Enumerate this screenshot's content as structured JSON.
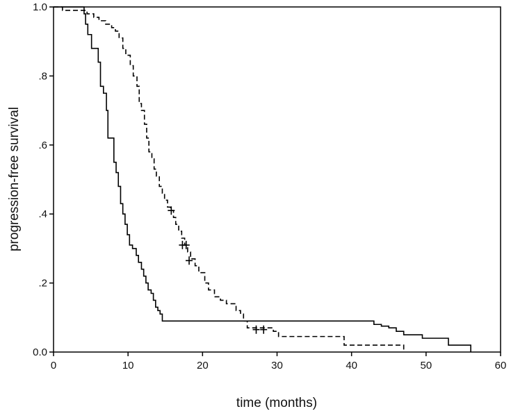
{
  "chart_data": {
    "type": "line",
    "subtype": "kaplan-meier step",
    "title": "",
    "xlabel": "time (months)",
    "ylabel": "progression-free survival",
    "xlim": [
      0,
      60
    ],
    "ylim": [
      0,
      1
    ],
    "x_ticks": [
      0,
      10,
      20,
      30,
      40,
      50,
      60
    ],
    "x_tick_labels": [
      "0",
      "10",
      "20",
      "30",
      "40",
      "50",
      "60"
    ],
    "y_ticks": [
      0,
      0.2,
      0.4,
      0.6,
      0.8,
      1.0
    ],
    "y_tick_labels": [
      "0.0",
      ".2",
      ".4",
      ".6",
      ".8",
      "1.0"
    ],
    "grid": false,
    "legend": "none",
    "series": [
      {
        "line_style": "solid",
        "color": "#000000",
        "steps": [
          [
            0,
            1.0
          ],
          [
            4.1,
            0.98
          ],
          [
            4.3,
            0.95
          ],
          [
            4.6,
            0.92
          ],
          [
            5.1,
            0.88
          ],
          [
            6.0,
            0.84
          ],
          [
            6.3,
            0.77
          ],
          [
            6.7,
            0.75
          ],
          [
            7.1,
            0.7
          ],
          [
            7.3,
            0.62
          ],
          [
            8.1,
            0.55
          ],
          [
            8.4,
            0.52
          ],
          [
            8.7,
            0.48
          ],
          [
            9.0,
            0.43
          ],
          [
            9.3,
            0.4
          ],
          [
            9.6,
            0.37
          ],
          [
            9.9,
            0.34
          ],
          [
            10.2,
            0.31
          ],
          [
            10.6,
            0.3
          ],
          [
            11.1,
            0.28
          ],
          [
            11.4,
            0.26
          ],
          [
            11.8,
            0.24
          ],
          [
            12.1,
            0.22
          ],
          [
            12.4,
            0.2
          ],
          [
            12.7,
            0.18
          ],
          [
            13.1,
            0.17
          ],
          [
            13.4,
            0.15
          ],
          [
            13.7,
            0.13
          ],
          [
            14.0,
            0.12
          ],
          [
            14.3,
            0.11
          ],
          [
            14.6,
            0.09
          ],
          [
            43.0,
            0.08
          ],
          [
            44.0,
            0.075
          ],
          [
            45.0,
            0.07
          ],
          [
            46.0,
            0.06
          ],
          [
            47.0,
            0.05
          ],
          [
            49.5,
            0.04
          ],
          [
            53.0,
            0.02
          ],
          [
            56.0,
            0.0
          ]
        ],
        "end_x": 56.0,
        "censored": []
      },
      {
        "line_style": "dashed",
        "color": "#000000",
        "steps": [
          [
            0,
            1.0
          ],
          [
            1.2,
            0.99
          ],
          [
            4.5,
            0.98
          ],
          [
            5.4,
            0.97
          ],
          [
            6.1,
            0.96
          ],
          [
            7.0,
            0.95
          ],
          [
            7.8,
            0.94
          ],
          [
            8.3,
            0.93
          ],
          [
            8.8,
            0.91
          ],
          [
            9.3,
            0.88
          ],
          [
            9.7,
            0.86
          ],
          [
            10.3,
            0.83
          ],
          [
            10.7,
            0.8
          ],
          [
            11.2,
            0.77
          ],
          [
            11.5,
            0.72
          ],
          [
            11.8,
            0.7
          ],
          [
            12.2,
            0.66
          ],
          [
            12.5,
            0.62
          ],
          [
            12.8,
            0.58
          ],
          [
            13.2,
            0.56
          ],
          [
            13.5,
            0.53
          ],
          [
            13.8,
            0.51
          ],
          [
            14.2,
            0.48
          ],
          [
            14.6,
            0.46
          ],
          [
            14.9,
            0.44
          ],
          [
            15.3,
            0.42
          ],
          [
            15.7,
            0.41
          ],
          [
            16.1,
            0.39
          ],
          [
            16.4,
            0.37
          ],
          [
            16.8,
            0.35
          ],
          [
            17.2,
            0.33
          ],
          [
            17.6,
            0.31
          ],
          [
            18.0,
            0.29
          ],
          [
            18.4,
            0.27
          ],
          [
            19.0,
            0.25
          ],
          [
            19.5,
            0.23
          ],
          [
            20.3,
            0.2
          ],
          [
            20.8,
            0.18
          ],
          [
            21.6,
            0.16
          ],
          [
            22.4,
            0.15
          ],
          [
            23.2,
            0.14
          ],
          [
            24.5,
            0.12
          ],
          [
            25.1,
            0.11
          ],
          [
            25.5,
            0.09
          ],
          [
            26.0,
            0.07
          ],
          [
            29.5,
            0.06
          ],
          [
            30.2,
            0.045
          ],
          [
            39.0,
            0.02
          ],
          [
            47.0,
            0.0
          ]
        ],
        "end_x": 47.0,
        "censored": [
          [
            15.8,
            0.41
          ],
          [
            17.3,
            0.31
          ],
          [
            17.8,
            0.31
          ],
          [
            18.2,
            0.265
          ],
          [
            27.2,
            0.065
          ],
          [
            28.2,
            0.065
          ]
        ]
      }
    ]
  }
}
